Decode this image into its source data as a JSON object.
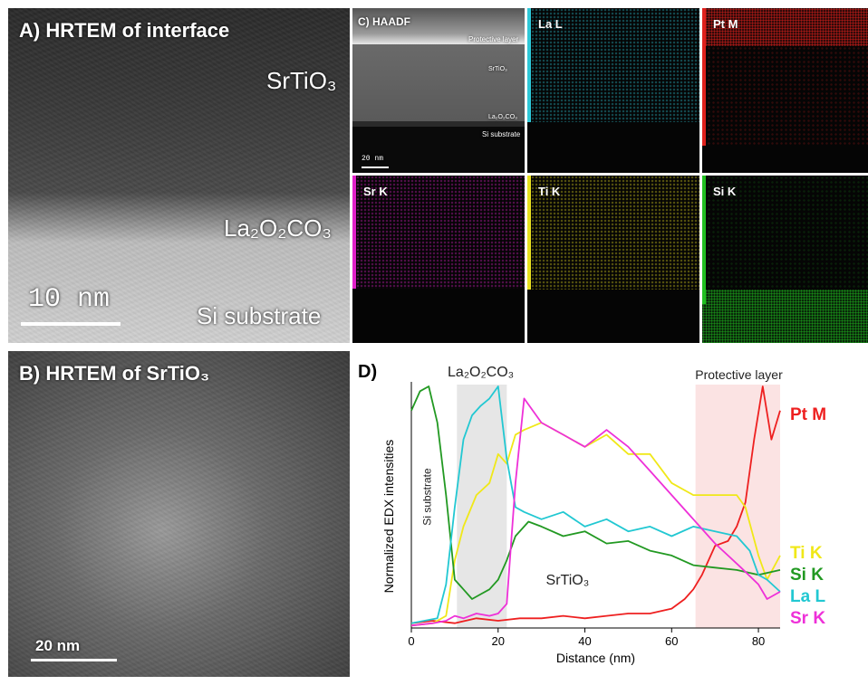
{
  "panel_a": {
    "title": "A) HRTEM of interface",
    "layer_srtio3": "SrTiO₃",
    "layer_la2o2co3": "La₂O₂CO₃",
    "layer_si": "Si substrate",
    "scale": "10 nm"
  },
  "panel_b": {
    "title": "B) HRTEM of SrTiO₃",
    "scale": "20 nm"
  },
  "panel_c": {
    "title": "C) HAADF",
    "layer_protective": "Protective layer",
    "layer_srtio3": "SrTiO₃",
    "layer_la2o2co3": "La₂O₂CO₃",
    "layer_si": "Si substrate",
    "scale": "20 nm",
    "maps": [
      {
        "label": "La L",
        "color": "#2ec8d8"
      },
      {
        "label": "Pt M",
        "color": "#e0201c"
      },
      {
        "label": "Sr K",
        "color": "#e020c8"
      },
      {
        "label": "Ti K",
        "color": "#e8e020"
      },
      {
        "label": "Si K",
        "color": "#20c020"
      }
    ]
  },
  "panel_d": {
    "title": "D)",
    "annot_la2o2co3": "La₂O₂CO₃",
    "annot_protective": "Protective layer",
    "annot_si": "Si substrate",
    "annot_srtio3": "SrTiO₃",
    "chart_data": {
      "type": "line",
      "xlabel": "Distance (nm)",
      "ylabel": "Normalized EDX intensities",
      "xlim": [
        0,
        85
      ],
      "xticks": [
        "0",
        "20",
        "40",
        "60",
        "80"
      ],
      "shaded_regions": [
        {
          "label": "La₂O₂CO₃",
          "x": [
            10.5,
            22
          ],
          "color": "#e6e6e6"
        },
        {
          "label": "Protective layer",
          "x": [
            65.5,
            85
          ],
          "color": "#fbe3e3"
        }
      ],
      "series": [
        {
          "name": "Pt M",
          "color": "#ee2020",
          "x": [
            0,
            5,
            10,
            15,
            20,
            25,
            30,
            35,
            40,
            45,
            50,
            55,
            60,
            63,
            65,
            67,
            70,
            73,
            75,
            77,
            79,
            81,
            83,
            85
          ],
          "y": [
            0.02,
            0.03,
            0.02,
            0.04,
            0.03,
            0.04,
            0.04,
            0.05,
            0.04,
            0.05,
            0.06,
            0.06,
            0.08,
            0.12,
            0.16,
            0.22,
            0.34,
            0.36,
            0.42,
            0.52,
            0.78,
            1.0,
            0.78,
            0.9
          ]
        },
        {
          "name": "Ti K",
          "color": "#f0e818",
          "x": [
            0,
            5,
            8,
            10,
            12,
            15,
            18,
            20,
            22,
            24,
            26,
            30,
            35,
            40,
            45,
            50,
            55,
            60,
            65,
            70,
            75,
            77,
            80,
            82,
            85
          ],
          "y": [
            0.01,
            0.02,
            0.05,
            0.28,
            0.42,
            0.55,
            0.6,
            0.72,
            0.68,
            0.8,
            0.82,
            0.85,
            0.8,
            0.75,
            0.8,
            0.72,
            0.72,
            0.6,
            0.55,
            0.55,
            0.55,
            0.5,
            0.3,
            0.2,
            0.3
          ]
        },
        {
          "name": "Si K",
          "color": "#229922",
          "x": [
            0,
            2,
            4,
            6,
            8,
            10,
            12,
            14,
            16,
            18,
            20,
            22,
            24,
            27,
            30,
            35,
            40,
            45,
            50,
            55,
            60,
            65,
            70,
            75,
            80,
            85
          ],
          "y": [
            0.9,
            0.98,
            1.0,
            0.85,
            0.55,
            0.2,
            0.16,
            0.12,
            0.14,
            0.16,
            0.2,
            0.28,
            0.38,
            0.44,
            0.42,
            0.38,
            0.4,
            0.35,
            0.36,
            0.32,
            0.3,
            0.26,
            0.25,
            0.24,
            0.22,
            0.24
          ]
        },
        {
          "name": "La L",
          "color": "#22c8d2",
          "x": [
            0,
            3,
            6,
            8,
            10,
            12,
            14,
            16,
            18,
            20,
            22,
            24,
            26,
            30,
            35,
            40,
            45,
            50,
            55,
            60,
            65,
            70,
            75,
            78,
            80,
            82,
            85
          ],
          "y": [
            0.02,
            0.03,
            0.04,
            0.18,
            0.5,
            0.78,
            0.88,
            0.92,
            0.95,
            1.0,
            0.7,
            0.5,
            0.48,
            0.45,
            0.48,
            0.42,
            0.45,
            0.4,
            0.42,
            0.38,
            0.42,
            0.4,
            0.38,
            0.32,
            0.22,
            0.2,
            0.15
          ]
        },
        {
          "name": "Sr K",
          "color": "#ee30d8",
          "x": [
            0,
            5,
            8,
            10,
            12,
            15,
            18,
            20,
            22,
            24,
            26,
            30,
            35,
            40,
            45,
            50,
            55,
            60,
            65,
            70,
            73,
            76,
            80,
            82,
            85
          ],
          "y": [
            0.01,
            0.02,
            0.03,
            0.05,
            0.04,
            0.06,
            0.05,
            0.06,
            0.1,
            0.6,
            0.95,
            0.85,
            0.8,
            0.75,
            0.82,
            0.75,
            0.65,
            0.55,
            0.45,
            0.35,
            0.3,
            0.25,
            0.18,
            0.12,
            0.15
          ]
        }
      ]
    }
  }
}
